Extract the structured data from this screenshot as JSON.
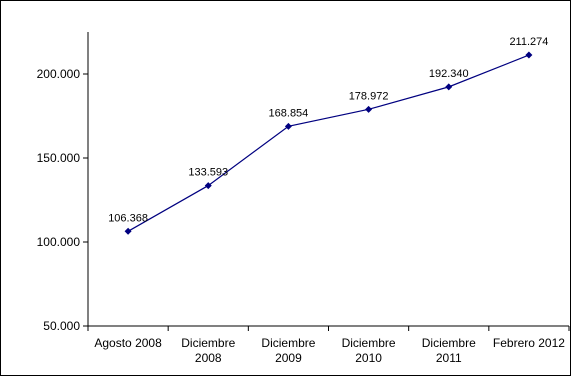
{
  "chart_data": {
    "type": "line",
    "categories": [
      [
        "Agosto 2008"
      ],
      [
        "Diciembre",
        "2008"
      ],
      [
        "Diciembre",
        "2009"
      ],
      [
        "Diciembre",
        "2010"
      ],
      [
        "Diciembre",
        "2011"
      ],
      [
        "Febrero 2012"
      ]
    ],
    "series": [
      {
        "values": [
          106368,
          133593,
          168854,
          178972,
          192340,
          211274
        ],
        "labels": [
          "106.368",
          "133.593",
          "168.854",
          "178.972",
          "192.340",
          "211.274"
        ],
        "color": "#000080"
      }
    ],
    "yticks": [
      50000,
      100000,
      150000,
      200000
    ],
    "ytick_labels": [
      "50.000",
      "100.000",
      "150.000",
      "200.000"
    ],
    "ylim": [
      50000,
      225000
    ],
    "grid": false,
    "legend": "none",
    "title": "",
    "xlabel": "",
    "ylabel": ""
  }
}
